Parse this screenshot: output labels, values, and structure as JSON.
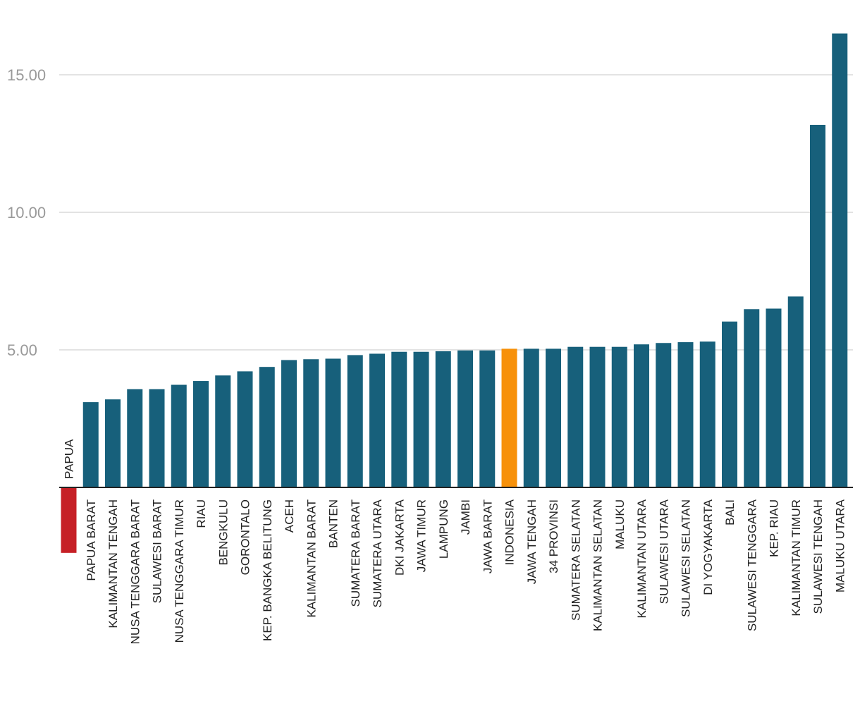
{
  "chart_data": {
    "type": "bar",
    "title": "",
    "xlabel": "",
    "ylabel": "",
    "ylim": [
      -2.5,
      16.5
    ],
    "yticks": [
      "5.00",
      "10.00",
      "15.00"
    ],
    "grid": true,
    "legend": "none",
    "colors": {
      "default": "#17607b",
      "highlight_indonesia": "#f7910a",
      "highlight_negative": "#c62026"
    },
    "categories": [
      "PAPUA",
      "PAPUA BARAT",
      "KALIMANTAN TENGAH",
      "NUSA TENGGARA BARAT",
      "SULAWESI BARAT",
      "NUSA TENGGARA TIMUR",
      "RIAU",
      "BENGKULU",
      "GORONTALO",
      "KEP. BANGKA BELITUNG",
      "ACEH",
      "KALIMANTAN BARAT",
      "BANTEN",
      "SUMATERA BARAT",
      "SUMATERA UTARA",
      "DKI JAKARTA",
      "JAWA TIMUR",
      "LAMPUNG",
      "JAMBI",
      "JAWA BARAT",
      "INDONESIA",
      "JAWA TENGAH",
      "34 PROVINSI",
      "SUMATERA SELATAN",
      "KALIMANTAN SELATAN",
      "MALUKU",
      "KALIMANTAN UTARA",
      "SULAWESI UTARA",
      "SULAWESI SELATAN",
      "DI YOGYAKARTA",
      "BALI",
      "SULAWESI TENGGARA",
      "KEP. RIAU",
      "KALIMANTAN TIMUR",
      "SULAWESI TENGAH",
      "MALUKU UTARA"
    ],
    "values": [
      -2.38,
      3.1,
      3.2,
      3.57,
      3.57,
      3.73,
      3.87,
      4.07,
      4.22,
      4.38,
      4.63,
      4.66,
      4.68,
      4.81,
      4.86,
      4.93,
      4.93,
      4.95,
      4.98,
      4.98,
      5.04,
      5.04,
      5.04,
      5.11,
      5.11,
      5.11,
      5.2,
      5.25,
      5.28,
      5.3,
      6.03,
      6.48,
      6.5,
      6.94,
      13.18,
      16.5
    ],
    "bar_colors": [
      "highlight_negative",
      "default",
      "default",
      "default",
      "default",
      "default",
      "default",
      "default",
      "default",
      "default",
      "default",
      "default",
      "default",
      "default",
      "default",
      "default",
      "default",
      "default",
      "default",
      "default",
      "highlight_indonesia",
      "default",
      "default",
      "default",
      "default",
      "default",
      "default",
      "default",
      "default",
      "default",
      "default",
      "default",
      "default",
      "default",
      "default",
      "default"
    ]
  }
}
